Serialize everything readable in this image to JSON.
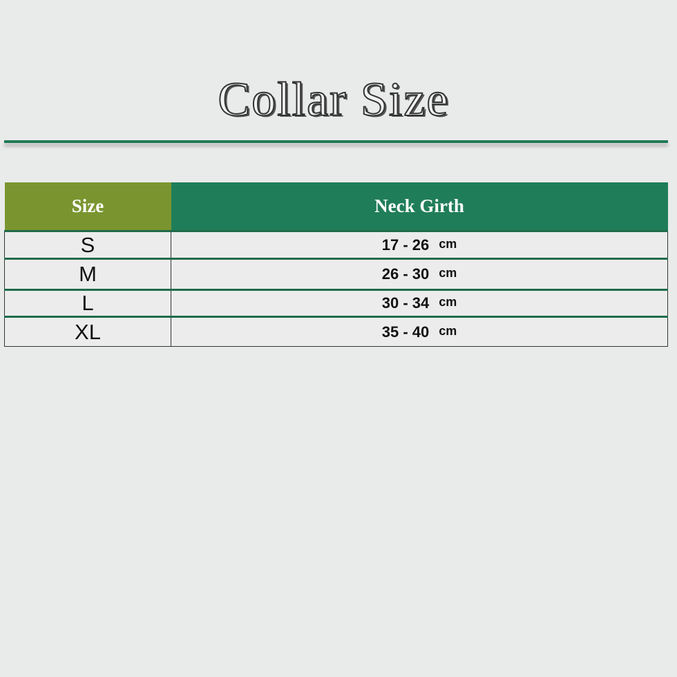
{
  "title": "Collar Size",
  "colors": {
    "header_size": "#7a9530",
    "header_girth": "#207d5a",
    "rule": "#1f7a55"
  },
  "table": {
    "headers": [
      "Size",
      "Neck Girth"
    ],
    "rows": [
      {
        "size": "S",
        "range": "17 - 26",
        "unit": "cm"
      },
      {
        "size": "M",
        "range": "26 - 30",
        "unit": "cm"
      },
      {
        "size": "L",
        "range": "30 - 34",
        "unit": "cm"
      },
      {
        "size": "XL",
        "range": "35 - 40",
        "unit": "cm"
      }
    ]
  }
}
